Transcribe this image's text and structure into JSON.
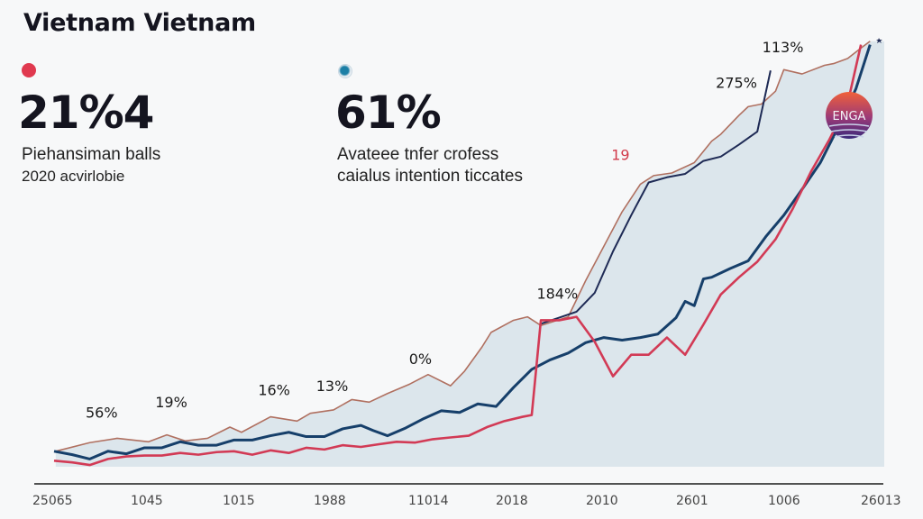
{
  "title": "Vietnam Vietnam",
  "stats": [
    {
      "value": "21%4",
      "desc_line1": "Piehansiman balls",
      "desc_line2": "2020 acvirlobie",
      "dot_color": "#e0394f"
    },
    {
      "value": "61%",
      "desc_line1": "Avateee tnfer crofess",
      "desc_line2": "caialus intention ticcates",
      "dot_color": "#1c7fa6"
    }
  ],
  "badge": {
    "label": "ENGA"
  },
  "chart_data": {
    "type": "line",
    "title": "Vietnam Vietnam",
    "xlabel": "",
    "ylabel": "",
    "x_tick_labels": [
      "25065",
      "1045",
      "1015",
      "1988",
      "11014",
      "2018",
      "2010",
      "2601",
      "1006",
      "26013"
    ],
    "xlim": [
      0,
      100
    ],
    "ylim": [
      0,
      100
    ],
    "grid": false,
    "area_fill": true,
    "series": [
      {
        "name": "upper",
        "color": "#b07060",
        "x": [
          0.2,
          4.3,
          7.6,
          11.4,
          13.6,
          15.8,
          18.5,
          21.2,
          22.6,
          26.1,
          29.3,
          30.9,
          33.7,
          35.9,
          38,
          40.2,
          42.9,
          45.1,
          47.8,
          49.5,
          51.6,
          52.7,
          55.4,
          57.1,
          58.7,
          62,
          64.1,
          66.3,
          68.5,
          70.7,
          72.3,
          74.5,
          77.2,
          79.3,
          80.4,
          82.6,
          83.7,
          85.3,
          87,
          88,
          90.2,
          92.9,
          94,
          95.7,
          97.3,
          98.4
        ],
        "y": [
          3.6,
          5.6,
          6.6,
          5.8,
          7.4,
          6,
          6.6,
          9.2,
          8,
          11.6,
          10.6,
          12.4,
          13.2,
          15.6,
          15,
          17,
          19.2,
          21.4,
          18.8,
          22.2,
          27.8,
          31.2,
          34,
          34.8,
          32.8,
          34.8,
          43.2,
          51.2,
          59.2,
          65.6,
          67.6,
          68.2,
          70.6,
          75.6,
          77.2,
          81.6,
          83.6,
          84.2,
          87.2,
          92.2,
          91.2,
          93.2,
          93.6,
          94.8,
          97.2,
          98.8
        ]
      },
      {
        "name": "dark-navy",
        "color": "#1e2a55",
        "x": [
          58.7,
          60.9,
          63,
          65.2,
          67.4,
          69.6,
          71.7,
          73.9,
          76.1,
          78.3,
          80.4,
          82.6,
          84.8,
          86.4
        ],
        "y": [
          33.2,
          34.6,
          36,
          40.4,
          50,
          58.4,
          66,
          67.2,
          68,
          71,
          72,
          74.8,
          77.8,
          92
        ]
      },
      {
        "name": "blue",
        "color": "#163f6a",
        "x": [
          0,
          2.2,
          4.3,
          6.5,
          8.7,
          10.9,
          13,
          15.2,
          17.4,
          19.6,
          21.7,
          23.9,
          26.1,
          28.3,
          30.4,
          32.6,
          34.8,
          37,
          38.5,
          40.2,
          42.4,
          44.6,
          46.7,
          48.9,
          51.1,
          53.3,
          55.4,
          57.6,
          59.8,
          62,
          64.1,
          66.3,
          68.5,
          70.7,
          72.8,
          75,
          76.1,
          77.2,
          78.3,
          79.3,
          81.5,
          83.7,
          85.9,
          88,
          90.2,
          92.4,
          94.6,
          96.7,
          98.4
        ],
        "y": [
          3.6,
          2.8,
          1.8,
          3.6,
          3,
          4.4,
          4.4,
          5.8,
          5,
          5,
          6.2,
          6.2,
          7.2,
          8,
          7,
          7,
          8.8,
          9.6,
          8.4,
          7.2,
          9,
          11.2,
          13,
          12.6,
          14.6,
          14,
          18.4,
          22.6,
          24.8,
          26.4,
          28.8,
          30,
          29.4,
          30,
          30.8,
          34.6,
          38.4,
          37.4,
          43.6,
          44,
          46,
          47.8,
          53.6,
          58.4,
          64.4,
          70.6,
          79,
          87.8,
          98
        ]
      },
      {
        "name": "red",
        "color": "#d23a55",
        "x": [
          0,
          2.2,
          4.3,
          6.5,
          8.7,
          10.9,
          13,
          15.2,
          17.4,
          19.6,
          21.7,
          23.9,
          26.1,
          28.3,
          30.4,
          32.6,
          34.8,
          37,
          39.1,
          41.3,
          43.5,
          45.7,
          47.8,
          50,
          52.2,
          54.3,
          56.5,
          57.6,
          58.7,
          60.9,
          63,
          65.2,
          67.4,
          69.6,
          71.7,
          73.9,
          76.1,
          78.3,
          80.4,
          82.6,
          84.8,
          87,
          89.1,
          91.3,
          93.5,
          95.7,
          97.3
        ],
        "y": [
          1.4,
          1,
          0.4,
          1.8,
          2.4,
          2.6,
          2.6,
          3.2,
          2.8,
          3.4,
          3.6,
          2.8,
          3.8,
          3.2,
          4.4,
          4,
          5,
          4.6,
          5.2,
          5.8,
          5.6,
          6.4,
          6.8,
          7.2,
          9.2,
          10.6,
          11.6,
          12,
          34,
          34,
          34.8,
          29,
          21,
          26,
          26,
          30,
          26,
          33,
          40,
          44,
          47.6,
          52.8,
          60,
          68.6,
          76,
          84.4,
          98
        ]
      }
    ],
    "annotations": [
      {
        "text": "56%",
        "x": 3.8,
        "y": 11.4
      },
      {
        "text": "19%",
        "x": 12.2,
        "y": 13.8
      },
      {
        "text": "16%",
        "x": 24.6,
        "y": 16.6
      },
      {
        "text": "13%",
        "x": 31.6,
        "y": 17.6
      },
      {
        "text": "0%",
        "x": 42.8,
        "y": 23.8
      },
      {
        "text": "184%",
        "x": 58.2,
        "y": 39
      },
      {
        "text": "19",
        "x": 67.2,
        "y": 71.2,
        "color": "red"
      },
      {
        "text": "275%",
        "x": 79.8,
        "y": 88
      },
      {
        "text": "113%",
        "x": 85.4,
        "y": 96.2
      }
    ]
  }
}
